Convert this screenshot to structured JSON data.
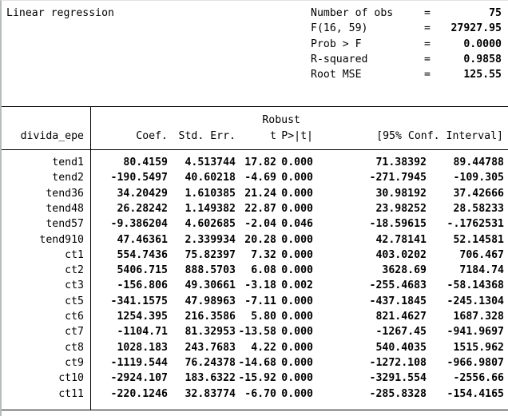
{
  "header": {
    "title": "Linear regression",
    "stats": [
      {
        "label": "Number of obs",
        "eq": "=",
        "value": "75"
      },
      {
        "label": "F(16, 59)",
        "eq": "=",
        "value": "27927.95"
      },
      {
        "label": "Prob > F",
        "eq": "=",
        "value": "0.0000"
      },
      {
        "label": "R-squared",
        "eq": "=",
        "value": "0.9858"
      },
      {
        "label": "Root MSE",
        "eq": "=",
        "value": "125.55"
      }
    ]
  },
  "table": {
    "depvar": "divida_epe",
    "robust_label": "Robust",
    "headers": {
      "coef": "Coef.",
      "stderr": "Std. Err.",
      "t": "t",
      "p": "P>|t|",
      "ci": "[95% Conf. Interval]"
    },
    "rows": [
      {
        "var": "tend1",
        "coef": "80.4159",
        "stderr": "4.513744",
        "t": "17.82",
        "p": "0.000",
        "ci_low": "71.38392",
        "ci_high": "89.44788"
      },
      {
        "var": "tend2",
        "coef": "-190.5497",
        "stderr": "40.60218",
        "t": "-4.69",
        "p": "0.000",
        "ci_low": "-271.7945",
        "ci_high": "-109.305"
      },
      {
        "var": "tend36",
        "coef": "34.20429",
        "stderr": "1.610385",
        "t": "21.24",
        "p": "0.000",
        "ci_low": "30.98192",
        "ci_high": "37.42666"
      },
      {
        "var": "tend48",
        "coef": "26.28242",
        "stderr": "1.149382",
        "t": "22.87",
        "p": "0.000",
        "ci_low": "23.98252",
        "ci_high": "28.58233"
      },
      {
        "var": "tend57",
        "coef": "-9.386204",
        "stderr": "4.602685",
        "t": "-2.04",
        "p": "0.046",
        "ci_low": "-18.59615",
        "ci_high": "-.1762531"
      },
      {
        "var": "tend910",
        "coef": "47.46361",
        "stderr": "2.339934",
        "t": "20.28",
        "p": "0.000",
        "ci_low": "42.78141",
        "ci_high": "52.14581"
      },
      {
        "var": "ct1",
        "coef": "554.7436",
        "stderr": "75.82397",
        "t": "7.32",
        "p": "0.000",
        "ci_low": "403.0202",
        "ci_high": "706.467"
      },
      {
        "var": "ct2",
        "coef": "5406.715",
        "stderr": "888.5703",
        "t": "6.08",
        "p": "0.000",
        "ci_low": "3628.69",
        "ci_high": "7184.74"
      },
      {
        "var": "ct3",
        "coef": "-156.806",
        "stderr": "49.30661",
        "t": "-3.18",
        "p": "0.002",
        "ci_low": "-255.4683",
        "ci_high": "-58.14368"
      },
      {
        "var": "ct5",
        "coef": "-341.1575",
        "stderr": "47.98963",
        "t": "-7.11",
        "p": "0.000",
        "ci_low": "-437.1845",
        "ci_high": "-245.1304"
      },
      {
        "var": "ct6",
        "coef": "1254.395",
        "stderr": "216.3586",
        "t": "5.80",
        "p": "0.000",
        "ci_low": "821.4627",
        "ci_high": "1687.328"
      },
      {
        "var": "ct7",
        "coef": "-1104.71",
        "stderr": "81.32953",
        "t": "-13.58",
        "p": "0.000",
        "ci_low": "-1267.45",
        "ci_high": "-941.9697"
      },
      {
        "var": "ct8",
        "coef": "1028.183",
        "stderr": "243.7683",
        "t": "4.22",
        "p": "0.000",
        "ci_low": "540.4035",
        "ci_high": "1515.962"
      },
      {
        "var": "ct9",
        "coef": "-1119.544",
        "stderr": "76.24378",
        "t": "-14.68",
        "p": "0.000",
        "ci_low": "-1272.108",
        "ci_high": "-966.9807"
      },
      {
        "var": "ct10",
        "coef": "-2924.107",
        "stderr": "183.6322",
        "t": "-15.92",
        "p": "0.000",
        "ci_low": "-3291.554",
        "ci_high": "-2556.66"
      },
      {
        "var": "ct11",
        "coef": "-220.1246",
        "stderr": "32.83774",
        "t": "-6.70",
        "p": "0.000",
        "ci_low": "-285.8328",
        "ci_high": "-154.4165"
      }
    ]
  }
}
